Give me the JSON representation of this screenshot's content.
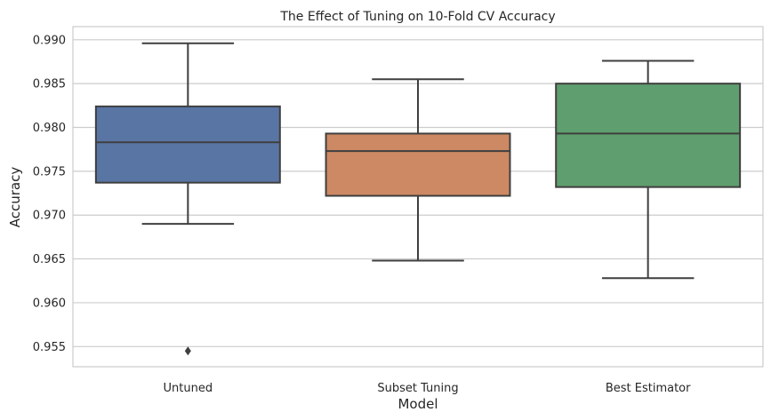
{
  "chart_data": {
    "type": "box",
    "title": "The Effect of Tuning on 10-Fold CV Accuracy",
    "xlabel": "Model",
    "ylabel": "Accuracy",
    "ylim": [
      0.9527,
      0.9915
    ],
    "yticks": [
      0.955,
      0.96,
      0.965,
      0.97,
      0.975,
      0.98,
      0.985,
      0.99
    ],
    "ytick_labels": [
      "0.955",
      "0.960",
      "0.965",
      "0.970",
      "0.975",
      "0.980",
      "0.985",
      "0.990"
    ],
    "grid": "horizontal",
    "categories": [
      "Untuned",
      "Subset Tuning",
      "Best Estimator"
    ],
    "boxes": [
      {
        "label": "Untuned",
        "whisker_low": 0.969,
        "q1": 0.9737,
        "median": 0.9783,
        "q3": 0.9824,
        "whisker_high": 0.9896,
        "outliers": [
          0.9545
        ],
        "color": "#5975a4"
      },
      {
        "label": "Subset Tuning",
        "whisker_low": 0.9648,
        "q1": 0.9722,
        "median": 0.9773,
        "q3": 0.9793,
        "whisker_high": 0.9855,
        "outliers": [],
        "color": "#cc8963"
      },
      {
        "label": "Best Estimator",
        "whisker_low": 0.9628,
        "q1": 0.9732,
        "median": 0.9793,
        "q3": 0.985,
        "whisker_high": 0.9876,
        "outliers": [],
        "color": "#5f9e6e"
      }
    ]
  }
}
